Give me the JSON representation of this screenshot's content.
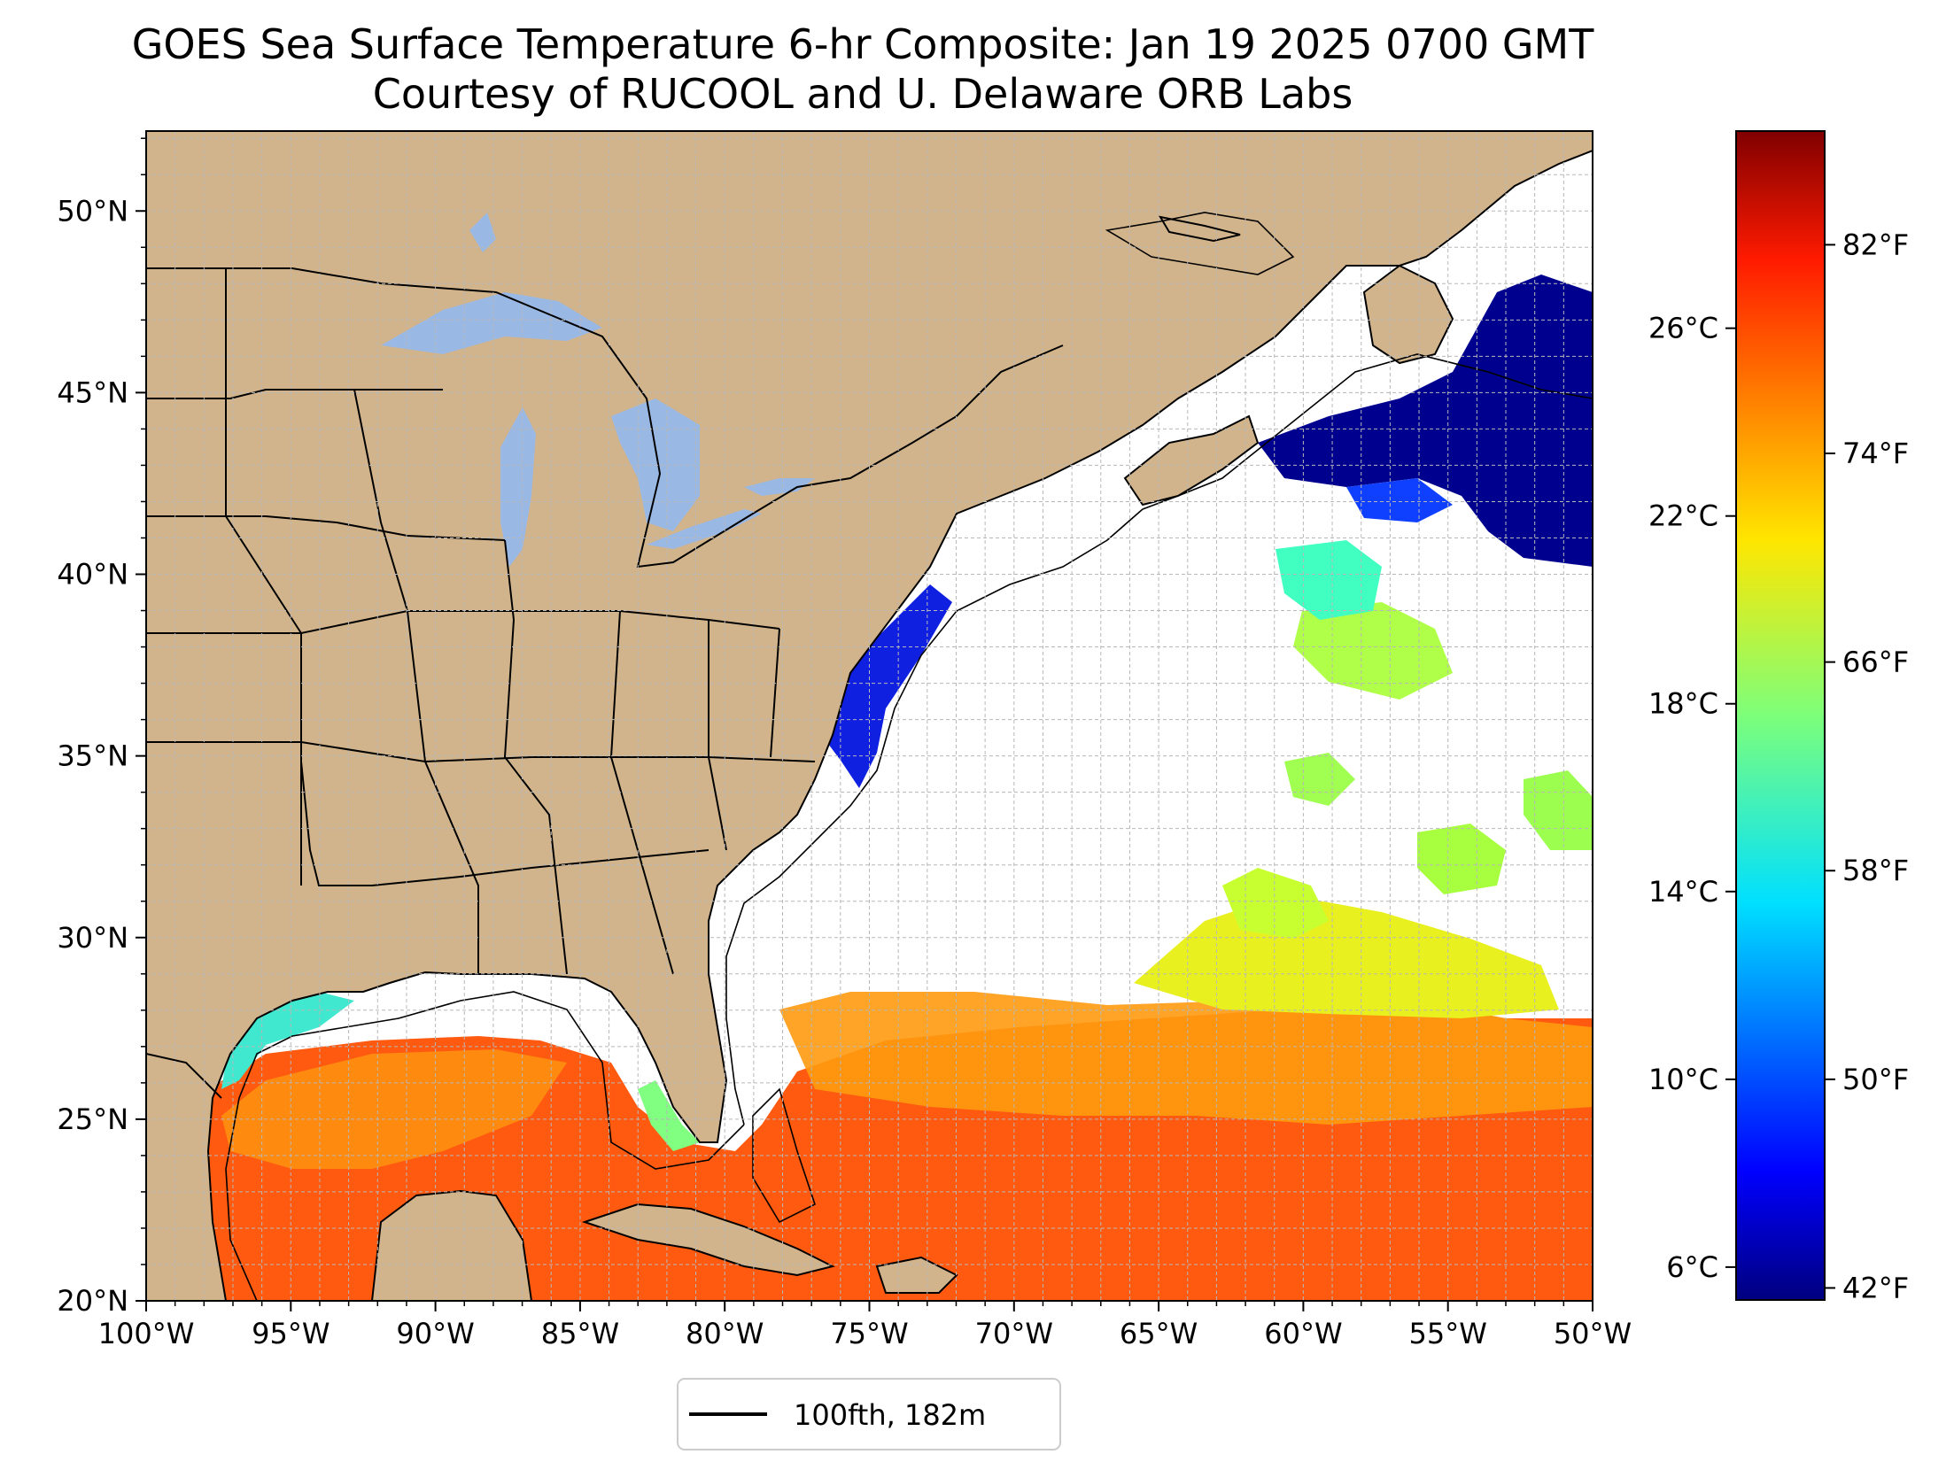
{
  "title": {
    "line1": "GOES Sea Surface Temperature 6-hr Composite: Jan 19 2025 0700 GMT",
    "line2": "Courtesy of RUCOOL and U. Delaware ORB Labs"
  },
  "map": {
    "lon_range": [
      -100,
      -50
    ],
    "lat_range": [
      20,
      52.2
    ],
    "lon_ticks": [
      {
        "value": -100,
        "label": "100°W"
      },
      {
        "value": -95,
        "label": "95°W"
      },
      {
        "value": -90,
        "label": "90°W"
      },
      {
        "value": -85,
        "label": "85°W"
      },
      {
        "value": -80,
        "label": "80°W"
      },
      {
        "value": -75,
        "label": "75°W"
      },
      {
        "value": -70,
        "label": "70°W"
      },
      {
        "value": -65,
        "label": "65°W"
      },
      {
        "value": -60,
        "label": "60°W"
      },
      {
        "value": -55,
        "label": "55°W"
      },
      {
        "value": -50,
        "label": "50°W"
      }
    ],
    "lat_ticks": [
      {
        "value": 20,
        "label": "20°N"
      },
      {
        "value": 25,
        "label": "25°N"
      },
      {
        "value": 30,
        "label": "30°N"
      },
      {
        "value": 35,
        "label": "35°N"
      },
      {
        "value": 40,
        "label": "40°N"
      },
      {
        "value": 45,
        "label": "45°N"
      },
      {
        "value": 50,
        "label": "50°N"
      }
    ],
    "colors": {
      "land": "#d2b48c",
      "lakes": "#9ab8e4",
      "no_data": "#ffffff",
      "grid": "#b8b8b8",
      "border": "#000000"
    }
  },
  "colorbar": {
    "colormap": "jet",
    "celsius_range": [
      5.3,
      30.2
    ],
    "celsius_ticks": [
      {
        "value": 6,
        "label": "6°C"
      },
      {
        "value": 10,
        "label": "10°C"
      },
      {
        "value": 14,
        "label": "14°C"
      },
      {
        "value": 18,
        "label": "18°C"
      },
      {
        "value": 22,
        "label": "22°C"
      },
      {
        "value": 26,
        "label": "26°C"
      }
    ],
    "fahrenheit_ticks": [
      {
        "value": 42,
        "label": "42°F"
      },
      {
        "value": 50,
        "label": "50°F"
      },
      {
        "value": 58,
        "label": "58°F"
      },
      {
        "value": 66,
        "label": "66°F"
      },
      {
        "value": 74,
        "label": "74°F"
      },
      {
        "value": 82,
        "label": "82°F"
      }
    ]
  },
  "legend": {
    "label": "100fth, 182m"
  }
}
